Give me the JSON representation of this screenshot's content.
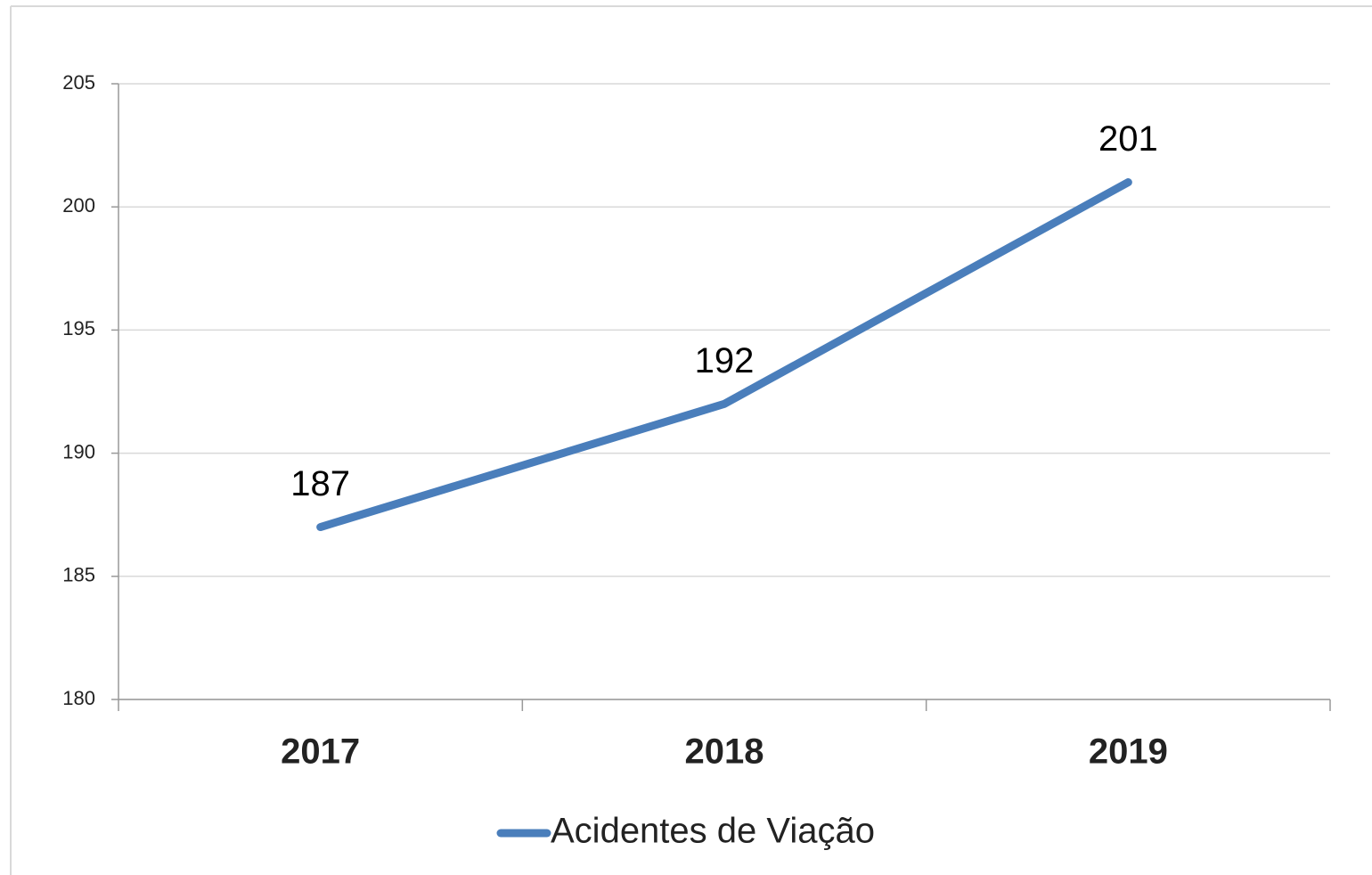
{
  "chart_data": {
    "type": "line",
    "categories": [
      "2017",
      "2018",
      "2019"
    ],
    "series": [
      {
        "name": "Acidentes de Viação",
        "color": "#4a7ebb",
        "values": [
          187,
          192,
          201
        ]
      }
    ],
    "ylim": [
      180,
      205
    ],
    "yticks": [
      180,
      185,
      190,
      195,
      200,
      205
    ],
    "grid": true,
    "legend": "bottom"
  }
}
